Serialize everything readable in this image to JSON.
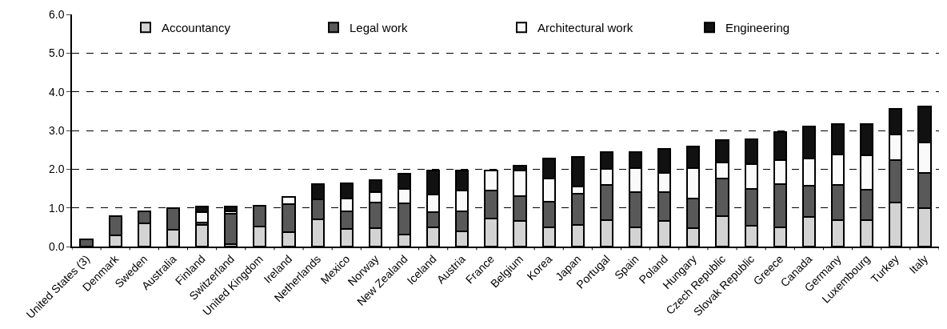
{
  "chart_data": {
    "type": "bar",
    "stacked": true,
    "categories": [
      "United States (3)",
      "Denmark",
      "Sweden",
      "Australia",
      "Finland",
      "Switzerland",
      "United Kingdom",
      "Ireland",
      "Netherlands",
      "Mexico",
      "Norway",
      "New Zealand",
      "Iceland",
      "Austria",
      "France",
      "Belgium",
      "Korea",
      "Japan",
      "Portugal",
      "Spain",
      "Poland",
      "Hungary",
      "Czech Republic",
      "Slovak Republic",
      "Greece",
      "Canada",
      "Germany",
      "Luxembourg",
      "Turkey",
      "Italy"
    ],
    "series": [
      {
        "name": "Accountancy",
        "color": "#d3d3d3",
        "values": [
          null,
          0.29,
          0.6,
          0.44,
          0.56,
          0.06,
          0.52,
          0.38,
          0.71,
          0.46,
          0.47,
          0.31,
          0.5,
          0.4,
          0.72,
          0.66,
          0.5,
          0.55,
          0.69,
          0.5,
          0.67,
          0.48,
          0.78,
          0.54,
          0.5,
          0.77,
          0.69,
          0.69,
          1.13,
          0.99
        ]
      },
      {
        "name": "Legal work",
        "color": "#595959",
        "values": [
          0.18,
          0.5,
          0.32,
          0.56,
          0.07,
          0.79,
          0.53,
          0.71,
          0.52,
          0.46,
          0.66,
          0.81,
          0.38,
          0.52,
          0.72,
          0.64,
          0.65,
          0.82,
          0.91,
          0.9,
          0.74,
          0.76,
          0.98,
          0.95,
          1.11,
          0.81,
          0.91,
          0.77,
          1.11,
          0.91
        ]
      },
      {
        "name": "Architectural work",
        "color": "#fafafa",
        "values": [
          null,
          null,
          null,
          null,
          0.25,
          0.07,
          null,
          0.19,
          null,
          0.32,
          0.27,
          0.37,
          0.47,
          0.52,
          0.53,
          0.66,
          0.61,
          0.19,
          0.4,
          0.63,
          0.5,
          0.78,
          0.42,
          0.64,
          0.63,
          0.69,
          0.77,
          0.89,
          0.66,
          0.78
        ]
      },
      {
        "name": "Engineering",
        "color": "#111111",
        "values": [
          null,
          null,
          null,
          null,
          0.15,
          0.11,
          null,
          null,
          0.38,
          0.4,
          0.32,
          0.4,
          0.61,
          0.53,
          null,
          0.12,
          0.52,
          0.75,
          0.44,
          0.41,
          0.61,
          0.56,
          0.58,
          0.64,
          0.71,
          0.83,
          0.8,
          0.82,
          0.65,
          0.94
        ]
      }
    ],
    "ylim": [
      0,
      6
    ],
    "yticks": [
      {
        "value": 0,
        "label": "0.0"
      },
      {
        "value": 1,
        "label": "1.0"
      },
      {
        "value": 2,
        "label": "2.0"
      },
      {
        "value": 3,
        "label": "3.0"
      },
      {
        "value": 4,
        "label": "4.0"
      },
      {
        "value": 5,
        "label": "5.0"
      },
      {
        "value": 6,
        "label": "6.0"
      }
    ],
    "grid": "y",
    "legend": "top"
  }
}
